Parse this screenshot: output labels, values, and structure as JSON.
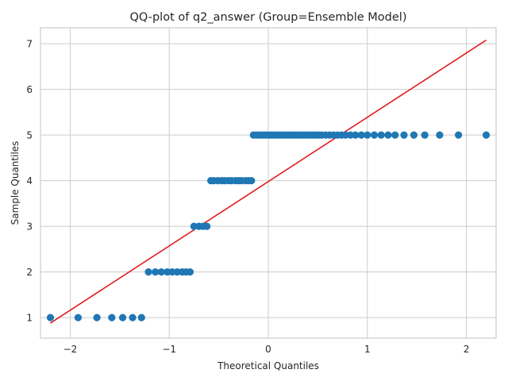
{
  "chart_data": {
    "type": "scatter",
    "title": "QQ-plot of q2_answer (Group=Ensemble Model)",
    "xlabel": "Theoretical Quantiles",
    "ylabel": "Sample Quantiles",
    "xlim": [
      -2.3,
      2.3
    ],
    "ylim": [
      0.55,
      7.35
    ],
    "xticks": [
      -2,
      -1,
      0,
      1,
      2
    ],
    "xtick_labels": [
      "−2",
      "−1",
      "0",
      "1",
      "2"
    ],
    "yticks": [
      1,
      2,
      3,
      4,
      5,
      6,
      7
    ],
    "ytick_labels": [
      "1",
      "2",
      "3",
      "4",
      "5",
      "6",
      "7"
    ],
    "grid": true,
    "point_color": "#1f77b4",
    "line_color": "#e31a1c",
    "reference_line": {
      "x": [
        -2.2,
        2.2
      ],
      "y": [
        0.88,
        7.08
      ]
    },
    "series": [
      {
        "values": [
          [
            -2.2,
            1
          ],
          [
            -1.92,
            1
          ],
          [
            -1.73,
            1
          ],
          [
            -1.58,
            1
          ],
          [
            -1.47,
            1
          ],
          [
            -1.37,
            1
          ],
          [
            -1.28,
            1
          ],
          [
            -1.21,
            2
          ],
          [
            -1.14,
            2
          ],
          [
            -1.08,
            2
          ],
          [
            -1.02,
            2
          ],
          [
            -0.97,
            2
          ],
          [
            -0.92,
            2
          ],
          [
            -0.87,
            2
          ],
          [
            -0.83,
            2
          ],
          [
            -0.79,
            2
          ],
          [
            -0.75,
            3
          ],
          [
            -0.7,
            3
          ],
          [
            -0.66,
            3
          ],
          [
            -0.62,
            3
          ],
          [
            -0.58,
            4
          ],
          [
            -0.55,
            4
          ],
          [
            -0.51,
            4
          ],
          [
            -0.47,
            4
          ],
          [
            -0.44,
            4
          ],
          [
            -0.4,
            4
          ],
          [
            -0.37,
            4
          ],
          [
            -0.33,
            4
          ],
          [
            -0.3,
            4
          ],
          [
            -0.27,
            4
          ],
          [
            -0.23,
            4
          ],
          [
            -0.2,
            4
          ],
          [
            -0.17,
            4
          ],
          [
            -0.15,
            5
          ],
          [
            -0.12,
            5
          ],
          [
            -0.09,
            5
          ],
          [
            -0.06,
            5
          ],
          [
            -0.03,
            5
          ],
          [
            0.0,
            5
          ],
          [
            0.03,
            5
          ],
          [
            0.06,
            5
          ],
          [
            0.09,
            5
          ],
          [
            0.12,
            5
          ],
          [
            0.15,
            5
          ],
          [
            0.18,
            5
          ],
          [
            0.21,
            5
          ],
          [
            0.24,
            5
          ],
          [
            0.27,
            5
          ],
          [
            0.3,
            5
          ],
          [
            0.33,
            5
          ],
          [
            0.36,
            5
          ],
          [
            0.39,
            5
          ],
          [
            0.42,
            5
          ],
          [
            0.45,
            5
          ],
          [
            0.48,
            5
          ],
          [
            0.51,
            5
          ],
          [
            0.54,
            5
          ],
          [
            0.58,
            5
          ],
          [
            0.62,
            5
          ],
          [
            0.66,
            5
          ],
          [
            0.7,
            5
          ],
          [
            0.74,
            5
          ],
          [
            0.78,
            5
          ],
          [
            0.83,
            5
          ],
          [
            0.88,
            5
          ],
          [
            0.94,
            5
          ],
          [
            1.0,
            5
          ],
          [
            1.07,
            5
          ],
          [
            1.14,
            5
          ],
          [
            1.21,
            5
          ],
          [
            1.28,
            5
          ],
          [
            1.37,
            5
          ],
          [
            1.47,
            5
          ],
          [
            1.58,
            5
          ],
          [
            1.73,
            5
          ],
          [
            1.92,
            5
          ],
          [
            2.2,
            5
          ]
        ]
      }
    ]
  }
}
